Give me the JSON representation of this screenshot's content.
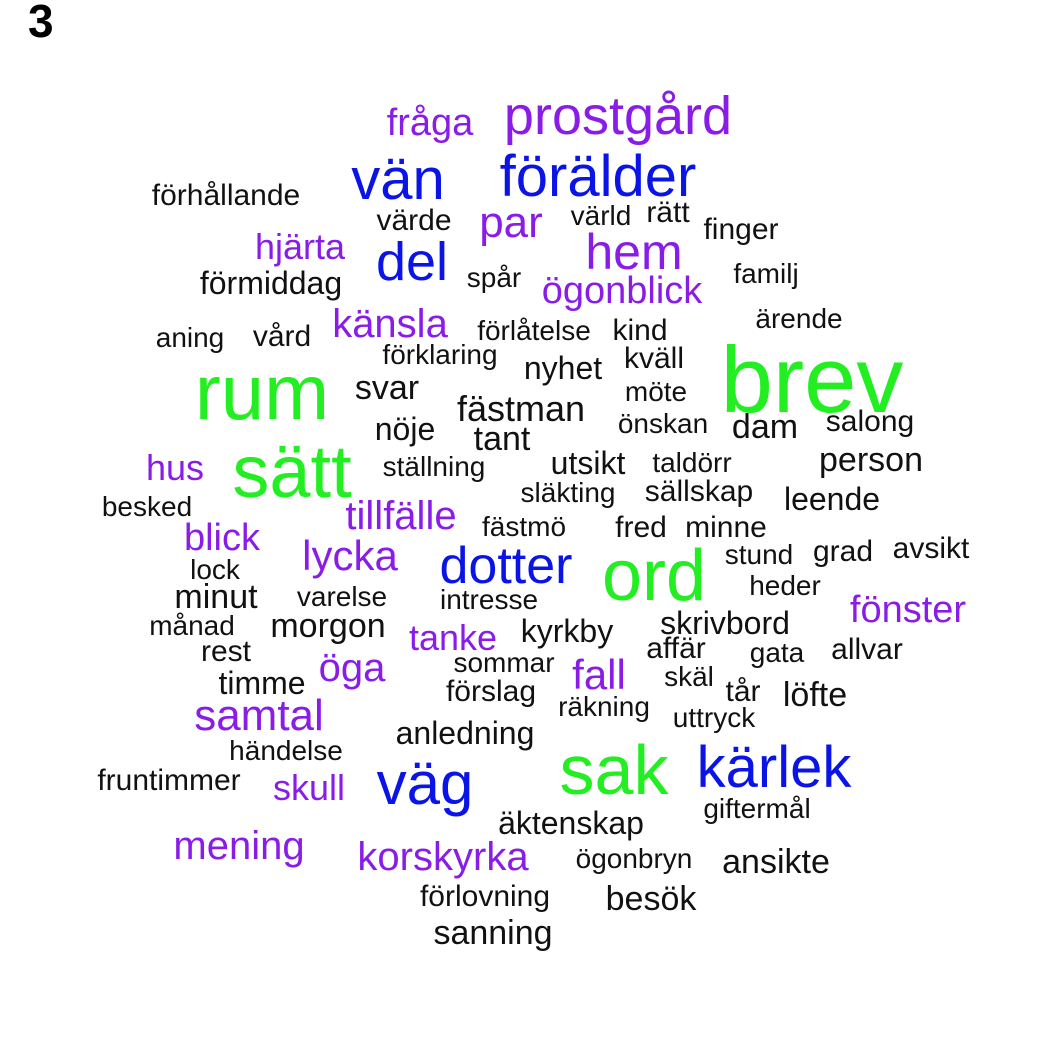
{
  "panel_label": "3",
  "colors": {
    "green": "#22ee22",
    "blue": "#0a14e6",
    "purple": "#8a1ce8",
    "black": "#111111"
  },
  "words": [
    {
      "text": "brev",
      "color": "green"
    },
    {
      "text": "rum",
      "color": "green"
    },
    {
      "text": "sätt",
      "color": "green"
    },
    {
      "text": "ord",
      "color": "green"
    },
    {
      "text": "sak",
      "color": "green"
    },
    {
      "text": "vän",
      "color": "blue"
    },
    {
      "text": "förälder",
      "color": "blue"
    },
    {
      "text": "del",
      "color": "blue"
    },
    {
      "text": "dotter",
      "color": "blue"
    },
    {
      "text": "kärlek",
      "color": "blue"
    },
    {
      "text": "väg",
      "color": "blue"
    },
    {
      "text": "prostgård",
      "color": "purple"
    },
    {
      "text": "fråga",
      "color": "purple"
    },
    {
      "text": "par",
      "color": "purple"
    },
    {
      "text": "hem",
      "color": "purple"
    },
    {
      "text": "hjärta",
      "color": "purple"
    },
    {
      "text": "ögonblick",
      "color": "purple"
    },
    {
      "text": "känsla",
      "color": "purple"
    },
    {
      "text": "hus",
      "color": "purple"
    },
    {
      "text": "tillfälle",
      "color": "purple"
    },
    {
      "text": "blick",
      "color": "purple"
    },
    {
      "text": "lycka",
      "color": "purple"
    },
    {
      "text": "fönster",
      "color": "purple"
    },
    {
      "text": "tanke",
      "color": "purple"
    },
    {
      "text": "öga",
      "color": "purple"
    },
    {
      "text": "fall",
      "color": "purple"
    },
    {
      "text": "samtal",
      "color": "purple"
    },
    {
      "text": "skull",
      "color": "purple"
    },
    {
      "text": "mening",
      "color": "purple"
    },
    {
      "text": "korskyrka",
      "color": "purple"
    },
    {
      "text": "förhållande",
      "color": "black"
    },
    {
      "text": "värde",
      "color": "black"
    },
    {
      "text": "värld",
      "color": "black"
    },
    {
      "text": "rätt",
      "color": "black"
    },
    {
      "text": "finger",
      "color": "black"
    },
    {
      "text": "förmiddag",
      "color": "black"
    },
    {
      "text": "spår",
      "color": "black"
    },
    {
      "text": "familj",
      "color": "black"
    },
    {
      "text": "ärende",
      "color": "black"
    },
    {
      "text": "aning",
      "color": "black"
    },
    {
      "text": "vård",
      "color": "black"
    },
    {
      "text": "förlåtelse",
      "color": "black"
    },
    {
      "text": "kind",
      "color": "black"
    },
    {
      "text": "förklaring",
      "color": "black"
    },
    {
      "text": "kväll",
      "color": "black"
    },
    {
      "text": "nyhet",
      "color": "black"
    },
    {
      "text": "svar",
      "color": "black"
    },
    {
      "text": "möte",
      "color": "black"
    },
    {
      "text": "fästman",
      "color": "black"
    },
    {
      "text": "nöje",
      "color": "black"
    },
    {
      "text": "önskan",
      "color": "black"
    },
    {
      "text": "dam",
      "color": "black"
    },
    {
      "text": "salong",
      "color": "black"
    },
    {
      "text": "tant",
      "color": "black"
    },
    {
      "text": "person",
      "color": "black"
    },
    {
      "text": "ställning",
      "color": "black"
    },
    {
      "text": "utsikt",
      "color": "black"
    },
    {
      "text": "taldörr",
      "color": "black"
    },
    {
      "text": "besked",
      "color": "black"
    },
    {
      "text": "släkting",
      "color": "black"
    },
    {
      "text": "sällskap",
      "color": "black"
    },
    {
      "text": "leende",
      "color": "black"
    },
    {
      "text": "fästmö",
      "color": "black"
    },
    {
      "text": "fred",
      "color": "black"
    },
    {
      "text": "minne",
      "color": "black"
    },
    {
      "text": "stund",
      "color": "black"
    },
    {
      "text": "grad",
      "color": "black"
    },
    {
      "text": "avsikt",
      "color": "black"
    },
    {
      "text": "lock",
      "color": "black"
    },
    {
      "text": "heder",
      "color": "black"
    },
    {
      "text": "minut",
      "color": "black"
    },
    {
      "text": "varelse",
      "color": "black"
    },
    {
      "text": "intresse",
      "color": "black"
    },
    {
      "text": "månad",
      "color": "black"
    },
    {
      "text": "morgon",
      "color": "black"
    },
    {
      "text": "kyrkby",
      "color": "black"
    },
    {
      "text": "skrivbord",
      "color": "black"
    },
    {
      "text": "rest",
      "color": "black"
    },
    {
      "text": "affär",
      "color": "black"
    },
    {
      "text": "gata",
      "color": "black"
    },
    {
      "text": "allvar",
      "color": "black"
    },
    {
      "text": "sommar",
      "color": "black"
    },
    {
      "text": "timme",
      "color": "black"
    },
    {
      "text": "skäl",
      "color": "black"
    },
    {
      "text": "förslag",
      "color": "black"
    },
    {
      "text": "tår",
      "color": "black"
    },
    {
      "text": "löfte",
      "color": "black"
    },
    {
      "text": "räkning",
      "color": "black"
    },
    {
      "text": "uttryck",
      "color": "black"
    },
    {
      "text": "anledning",
      "color": "black"
    },
    {
      "text": "händelse",
      "color": "black"
    },
    {
      "text": "fruntimmer",
      "color": "black"
    },
    {
      "text": "giftermål",
      "color": "black"
    },
    {
      "text": "äktenskap",
      "color": "black"
    },
    {
      "text": "ögonbryn",
      "color": "black"
    },
    {
      "text": "ansikte",
      "color": "black"
    },
    {
      "text": "förlovning",
      "color": "black"
    },
    {
      "text": "besök",
      "color": "black"
    },
    {
      "text": "sanning",
      "color": "black"
    }
  ]
}
